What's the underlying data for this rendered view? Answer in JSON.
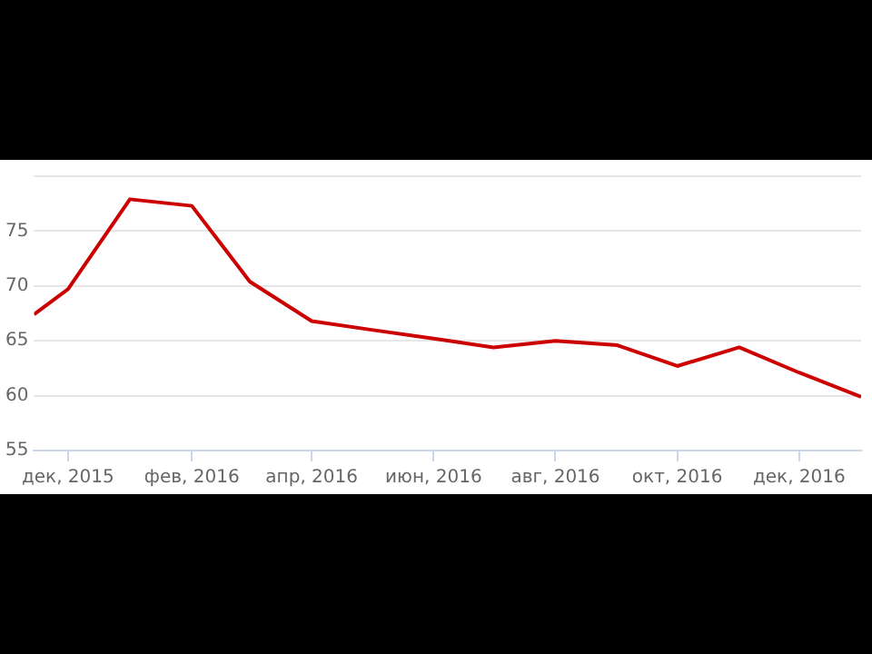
{
  "chart_data": {
    "type": "line",
    "x": [
      "2015-11-14",
      "2015-12-01",
      "2016-01-01",
      "2016-02-01",
      "2016-03-01",
      "2016-04-01",
      "2016-05-01",
      "2016-06-01",
      "2016-07-01",
      "2016-08-01",
      "2016-09-01",
      "2016-10-01",
      "2016-11-01",
      "2016-12-01",
      "2017-01-01"
    ],
    "series": [
      {
        "color": "#cc0000",
        "values": [
          67.4,
          69.7,
          77.9,
          77.3,
          70.4,
          66.8,
          66.0,
          65.2,
          64.4,
          65.0,
          64.6,
          62.7,
          64.4,
          62.1,
          59.9
        ]
      }
    ],
    "xlim": [
      "2015-11-14",
      "2017-01-01"
    ],
    "xticks": [
      {
        "value": "2015-12-01",
        "label": "дек, 2015"
      },
      {
        "value": "2016-02-01",
        "label": "фев, 2016"
      },
      {
        "value": "2016-04-01",
        "label": "апр, 2016"
      },
      {
        "value": "2016-06-01",
        "label": "июн, 2016"
      },
      {
        "value": "2016-08-01",
        "label": "авг, 2016"
      },
      {
        "value": "2016-10-01",
        "label": "окт, 2016"
      },
      {
        "value": "2016-12-01",
        "label": "дек, 2016"
      }
    ],
    "ylim": [
      55,
      80
    ],
    "yticks": [
      55,
      60,
      65,
      70,
      75,
      {
        "value": 80,
        "label": null
      }
    ],
    "grid": "y",
    "legend": false,
    "marker": "none",
    "line_style": "solid"
  }
}
